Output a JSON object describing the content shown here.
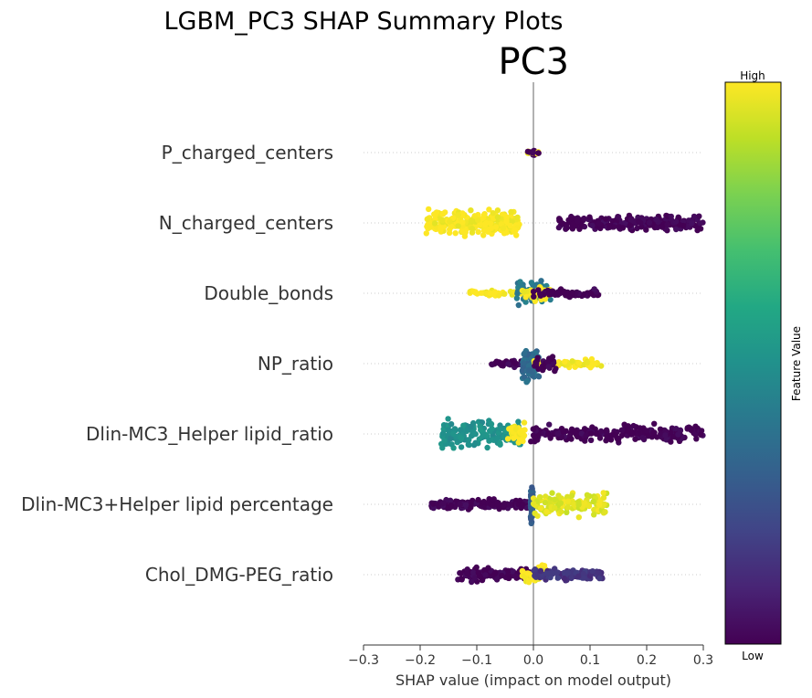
{
  "chart_data": {
    "type": "scatter",
    "variant": "shap-beeswarm",
    "suptitle": "LGBM_PC3 SHAP Summary Plots",
    "title": "PC3",
    "xlabel": "SHAP value (impact on model output)",
    "xlim": [
      -0.3,
      0.3
    ],
    "xticks": [
      "−0.3",
      "−0.2",
      "−0.1",
      "0.0",
      "0.1",
      "0.2",
      "0.3"
    ],
    "xtick_values": [
      -0.3,
      -0.2,
      -0.1,
      0.0,
      0.1,
      0.2,
      0.3
    ],
    "zero_line": true,
    "colormap": "viridis",
    "colorbar": {
      "label": "Feature Value",
      "high": "High",
      "low": "Low"
    },
    "colors": {
      "low": "#440154",
      "mid": "#21918c",
      "high": "#fde725",
      "zero_line": "#999999",
      "text": "#333333"
    },
    "features": [
      {
        "name": "P_charged_centers",
        "groups": [
          {
            "x_min": -0.002,
            "x_max": 0.002,
            "count": 40,
            "value": 0.0,
            "spread": 0.1
          },
          {
            "x_min": -0.01,
            "x_max": 0.01,
            "count": 8,
            "value": 1.0,
            "spread": 0.05
          },
          {
            "x_min": -0.01,
            "x_max": 0.01,
            "count": 6,
            "value": 0.0,
            "spread": 0.05
          }
        ]
      },
      {
        "name": "N_charged_centers",
        "groups": [
          {
            "x_min": -0.19,
            "x_max": -0.025,
            "count": 260,
            "value": 1.0,
            "spread": 0.55
          },
          {
            "x_min": 0.045,
            "x_max": 0.3,
            "count": 230,
            "value": 0.0,
            "spread": 0.35
          }
        ]
      },
      {
        "name": "Double_bonds",
        "groups": [
          {
            "x_min": -0.115,
            "x_max": 0.0,
            "count": 60,
            "value": 1.0,
            "spread": 0.12
          },
          {
            "x_min": -0.03,
            "x_max": 0.03,
            "count": 70,
            "value": 0.4,
            "spread": 0.55
          },
          {
            "x_min": -0.02,
            "x_max": 0.03,
            "count": 40,
            "value": 1.0,
            "spread": 0.35
          },
          {
            "x_min": 0.0,
            "x_max": 0.115,
            "count": 70,
            "value": 0.0,
            "spread": 0.2
          }
        ]
      },
      {
        "name": "NP_ratio",
        "groups": [
          {
            "x_min": -0.075,
            "x_max": 0.0,
            "count": 40,
            "value": 0.0,
            "spread": 0.15
          },
          {
            "x_min": -0.02,
            "x_max": 0.01,
            "count": 90,
            "value": 0.35,
            "spread": 0.7
          },
          {
            "x_min": 0.0,
            "x_max": 0.13,
            "count": 60,
            "value": 1.0,
            "spread": 0.18
          },
          {
            "x_min": 0.0,
            "x_max": 0.04,
            "count": 30,
            "value": 0.0,
            "spread": 0.35
          }
        ]
      },
      {
        "name": "Dlin-MC3_Helper lipid_ratio",
        "groups": [
          {
            "x_min": -0.165,
            "x_max": -0.02,
            "count": 160,
            "value": 0.5,
            "spread": 0.6
          },
          {
            "x_min": -0.045,
            "x_max": -0.015,
            "count": 40,
            "value": 1.0,
            "spread": 0.6
          },
          {
            "x_min": -0.005,
            "x_max": 0.3,
            "count": 230,
            "value": 0.0,
            "spread": 0.4
          }
        ]
      },
      {
        "name": "Dlin-MC3+Helper lipid percentage",
        "groups": [
          {
            "x_min": -0.18,
            "x_max": -0.01,
            "count": 150,
            "value": 0.0,
            "spread": 0.22
          },
          {
            "x_min": -0.005,
            "x_max": -0.001,
            "count": 60,
            "value": 0.3,
            "spread": 0.8
          },
          {
            "x_min": 0.0,
            "x_max": 0.13,
            "count": 140,
            "value": 0.95,
            "spread": 0.5
          }
        ]
      },
      {
        "name": "Chol_DMG-PEG_ratio",
        "groups": [
          {
            "x_min": -0.135,
            "x_max": -0.005,
            "count": 110,
            "value": 0.0,
            "spread": 0.3
          },
          {
            "x_min": -0.02,
            "x_max": 0.025,
            "count": 50,
            "value": 1.0,
            "spread": 0.35
          },
          {
            "x_min": 0.0,
            "x_max": 0.125,
            "count": 120,
            "value": 0.15,
            "spread": 0.25
          }
        ]
      }
    ]
  }
}
